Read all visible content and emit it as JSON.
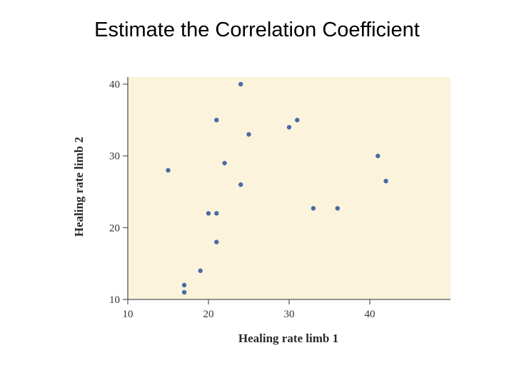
{
  "slide": {
    "title": "Estimate the Correlation Coefficient"
  },
  "chart_data": {
    "type": "scatter",
    "xlabel": "Healing rate limb 1",
    "ylabel": "Healing rate limb 2",
    "xlim": [
      10,
      50
    ],
    "ylim": [
      10,
      41
    ],
    "x_ticks": [
      10,
      20,
      30,
      40
    ],
    "y_ticks": [
      10,
      20,
      30,
      40
    ],
    "grid": false,
    "plot_background": "#fcf3dc",
    "point_color": "#4a6aa5",
    "axis_color": "#555555",
    "points": [
      {
        "x": 24,
        "y": 40
      },
      {
        "x": 21,
        "y": 35
      },
      {
        "x": 31,
        "y": 35
      },
      {
        "x": 30,
        "y": 34
      },
      {
        "x": 25,
        "y": 33
      },
      {
        "x": 41,
        "y": 30
      },
      {
        "x": 22,
        "y": 29
      },
      {
        "x": 15,
        "y": 28
      },
      {
        "x": 42,
        "y": 26.5
      },
      {
        "x": 24,
        "y": 26
      },
      {
        "x": 33,
        "y": 22.7
      },
      {
        "x": 36,
        "y": 22.7
      },
      {
        "x": 20,
        "y": 22
      },
      {
        "x": 21,
        "y": 22
      },
      {
        "x": 21,
        "y": 18
      },
      {
        "x": 19,
        "y": 14
      },
      {
        "x": 17,
        "y": 12
      },
      {
        "x": 17,
        "y": 11
      }
    ]
  }
}
